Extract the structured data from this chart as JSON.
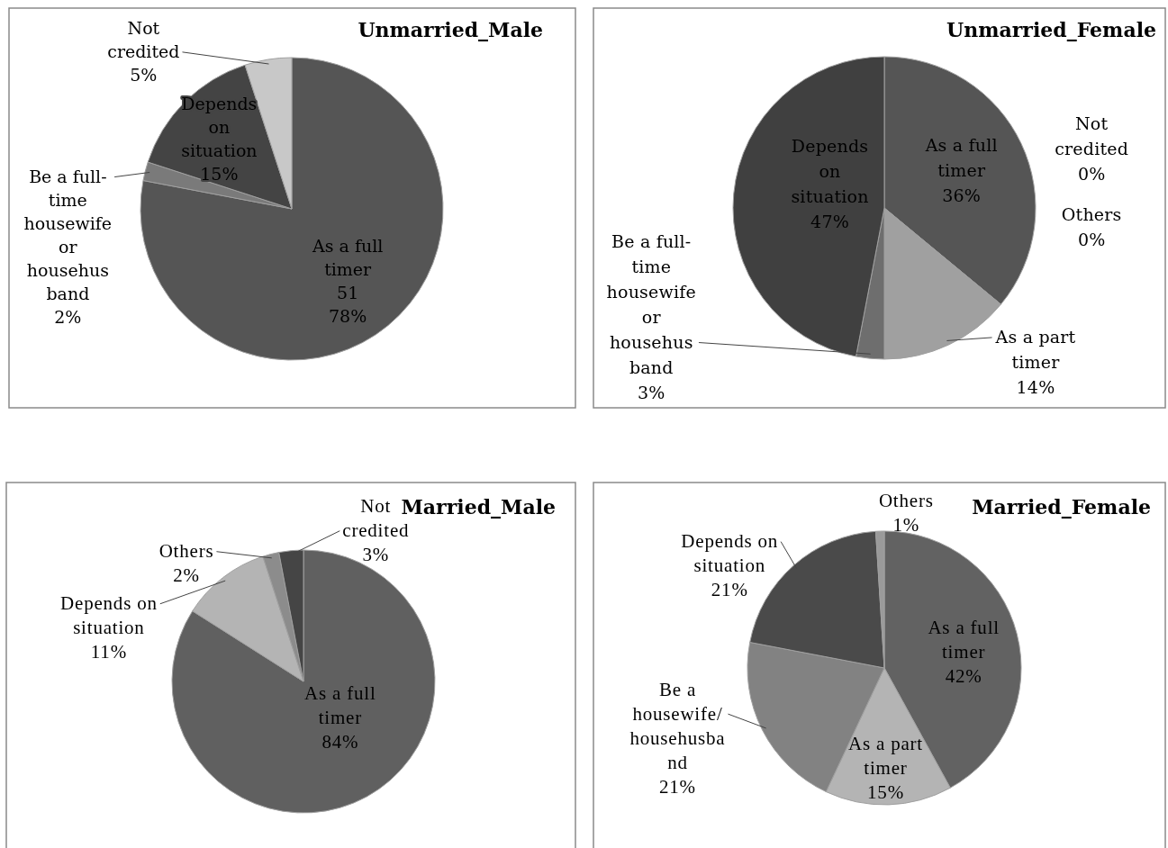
{
  "chart_data": [
    {
      "type": "pie",
      "title": "Unmarried_Male",
      "categories": [
        "As a full\ntimer",
        "Be a full-\ntime\nhousewife\nor\nhousehus\nband",
        "Depends\non\nsituation",
        "Not\ncredited"
      ],
      "values": [
        78,
        2,
        15,
        5
      ],
      "colors": [
        "#555555",
        "#7a7a7a",
        "#444444",
        "#c8c8c8"
      ],
      "value_labels": [
        "51\n78%",
        "2%",
        "15%",
        "5%"
      ]
    },
    {
      "type": "pie",
      "title": "Unmarried_Female",
      "categories": [
        "As a full\ntimer",
        "As a part\ntimer",
        "Be a full-\ntime\nhousewife\nor\nhousehus\nband",
        "Depends\non\nsituation",
        "Not\ncredited",
        "Others"
      ],
      "values": [
        36,
        14,
        3,
        47,
        0,
        0
      ],
      "colors": [
        "#555555",
        "#a0a0a0",
        "#6e6e6e",
        "#404040",
        null,
        null
      ],
      "value_labels": [
        "36%",
        "14%",
        "3%",
        "47%",
        "0%",
        "0%"
      ]
    },
    {
      "type": "pie",
      "title": "Married_Male",
      "categories": [
        "As a full\ntimer",
        "Depends on\nsituation",
        "Others",
        "Not\ncredited"
      ],
      "values": [
        84,
        11,
        2,
        3
      ],
      "colors": [
        "#606060",
        "#b4b4b4",
        "#8c8c8c",
        "#454545"
      ],
      "value_labels": [
        "84%",
        "11%",
        "2%",
        "3%"
      ]
    },
    {
      "type": "pie",
      "title": "Married_Female",
      "categories": [
        "As a full\ntimer",
        "As a part\ntimer",
        "Be a\nhousewife/\nhousehusba\nnd",
        "Depends on\nsituation",
        "Others"
      ],
      "values": [
        42,
        15,
        21,
        21,
        1
      ],
      "colors": [
        "#626262",
        "#b4b4b4",
        "#828282",
        "#4a4a4a",
        "#9a9a9a"
      ],
      "value_labels": [
        "42%",
        "15%",
        "21%",
        "21%",
        "1%"
      ]
    }
  ]
}
